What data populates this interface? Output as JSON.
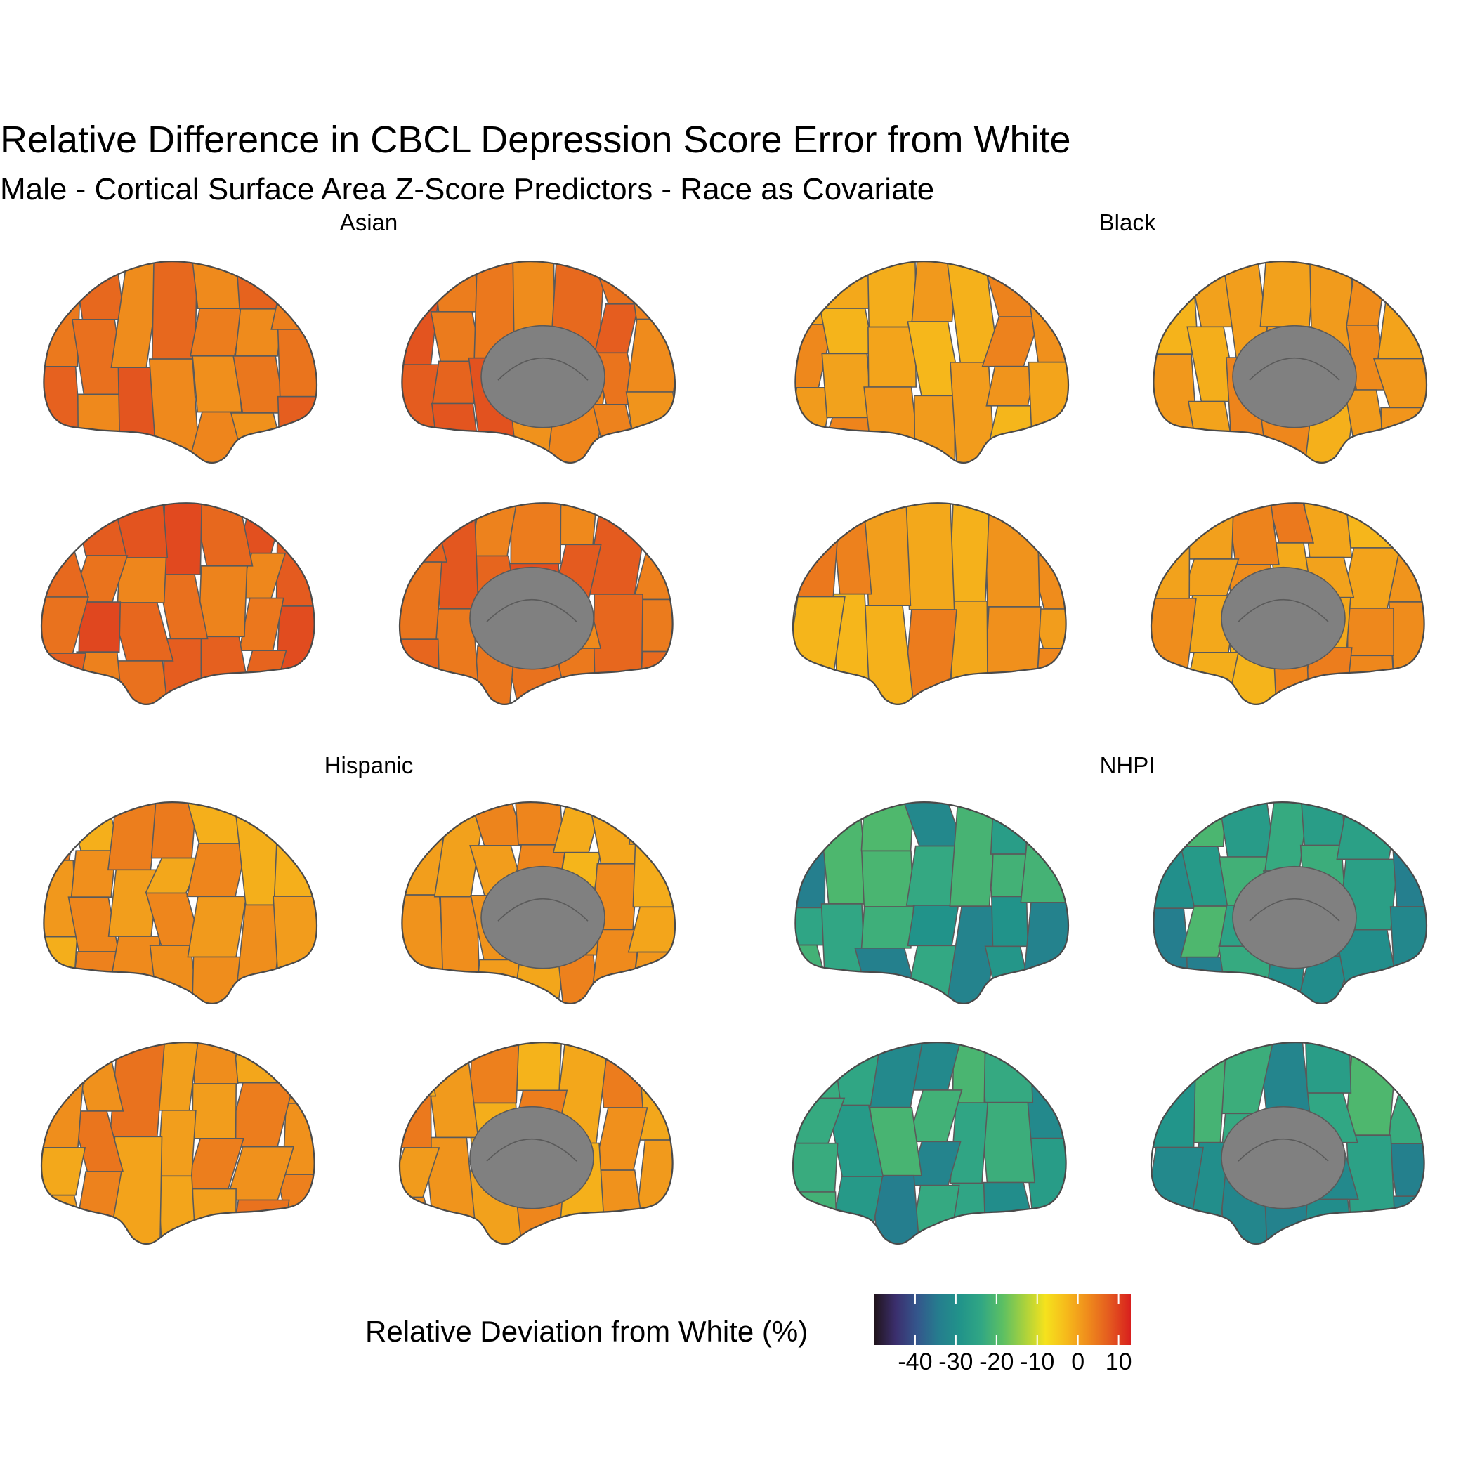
{
  "chart_data": {
    "type": "brain-atlas",
    "title": "Relative Difference in CBCL Depression Score Error from White",
    "subtitle": "Male - Cortical Surface Area Z-Score Predictors - Race as Covariate",
    "colorscale": {
      "name": "Relative Deviation from White (%)",
      "range": [
        -50,
        13
      ],
      "ticks": [
        -40,
        -30,
        -20,
        -10,
        0,
        10
      ],
      "tick_labels": [
        "-40",
        "-30",
        "-20",
        "-10",
        "0",
        "10"
      ],
      "colors": [
        "#21141c",
        "#3b2f6e",
        "#34568c",
        "#257d8e",
        "#21938a",
        "#31a784",
        "#5cbf63",
        "#a7d13e",
        "#f5e21d",
        "#f6b91b",
        "#ef8b1c",
        "#e45a1f",
        "#d81f1e"
      ]
    },
    "facets": [
      {
        "label": "Asian",
        "views": [
          {
            "view": "lateral-left",
            "base": 5
          },
          {
            "view": "medial-left",
            "base": 5
          },
          {
            "view": "lateral-right",
            "base": 6
          },
          {
            "view": "medial-right",
            "base": 6
          }
        ]
      },
      {
        "label": "Black",
        "views": [
          {
            "view": "lateral-left",
            "base": 1
          },
          {
            "view": "medial-left",
            "base": 1
          },
          {
            "view": "lateral-right",
            "base": 1
          },
          {
            "view": "medial-right",
            "base": 1
          }
        ]
      },
      {
        "label": "Hispanic",
        "views": [
          {
            "view": "lateral-left",
            "base": 1
          },
          {
            "view": "medial-left",
            "base": 1
          },
          {
            "view": "lateral-right",
            "base": 2
          },
          {
            "view": "medial-right",
            "base": 1
          }
        ]
      },
      {
        "label": "NHPI",
        "views": [
          {
            "view": "lateral-left",
            "base": -27
          },
          {
            "view": "medial-left",
            "base": -27
          },
          {
            "view": "lateral-right",
            "base": -27
          },
          {
            "view": "medial-right",
            "base": -27
          }
        ]
      }
    ]
  }
}
